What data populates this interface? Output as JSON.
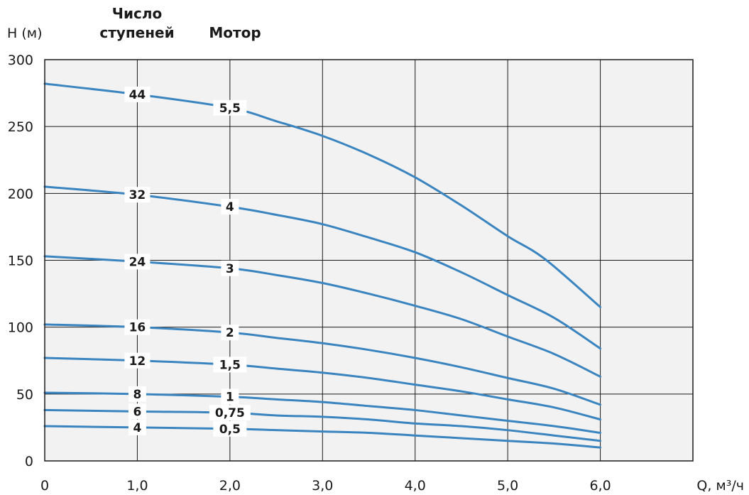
{
  "chart_data": {
    "type": "line",
    "ylabel": "H (м)",
    "xlabel": "Q, м³/ч",
    "column_headers": {
      "stages": "Число\nступеней",
      "motor": "Мотор"
    },
    "xlim": [
      0,
      7
    ],
    "ylim": [
      0,
      300
    ],
    "xticks": [
      "0",
      "1,0",
      "2,0",
      "3,0",
      "4,0",
      "5,0",
      "6,0"
    ],
    "yticks": [
      "0",
      "50",
      "100",
      "150",
      "200",
      "250",
      "300"
    ],
    "grid": true,
    "colors": {
      "line": "#3a84bf",
      "plot_bg": "#f2f2f2",
      "grid": "#1a1a1a",
      "text": "#1a1a1a"
    },
    "series": [
      {
        "stages": "44",
        "motor": "5,5",
        "x": [
          0,
          1,
          2,
          2.5,
          3,
          3.5,
          4,
          4.5,
          5,
          5.4,
          6
        ],
        "y": [
          282,
          274,
          264,
          254,
          243,
          229,
          212,
          191,
          168,
          151,
          115
        ]
      },
      {
        "stages": "32",
        "motor": "4",
        "x": [
          0,
          1,
          2,
          2.5,
          3,
          3.5,
          4,
          4.5,
          5,
          5.5,
          6
        ],
        "y": [
          205,
          199,
          190,
          184,
          177,
          167,
          156,
          141,
          124,
          107,
          84
        ]
      },
      {
        "stages": "24",
        "motor": "3",
        "x": [
          0,
          1,
          2,
          2.5,
          3,
          3.5,
          4,
          4.5,
          5,
          5.5,
          6
        ],
        "y": [
          153,
          149,
          144,
          139,
          133,
          125,
          116,
          106,
          93,
          80,
          63
        ]
      },
      {
        "stages": "16",
        "motor": "2",
        "x": [
          0,
          1,
          2,
          2.5,
          3,
          3.5,
          4,
          4.5,
          5,
          5.5,
          6
        ],
        "y": [
          102,
          100,
          96,
          92,
          88,
          83,
          77,
          70,
          62,
          54,
          42
        ]
      },
      {
        "stages": "12",
        "motor": "1,5",
        "x": [
          0,
          1,
          2,
          2.5,
          3,
          3.5,
          4,
          4.5,
          5,
          5.5,
          6
        ],
        "y": [
          77,
          75,
          72,
          69,
          66,
          62,
          57,
          52,
          46,
          40,
          31
        ]
      },
      {
        "stages": "8",
        "motor": "1",
        "x": [
          0,
          1,
          2,
          2.5,
          3,
          3.5,
          4,
          4.5,
          5,
          5.5,
          6
        ],
        "y": [
          51,
          50,
          48,
          46,
          44,
          41,
          38,
          34,
          30,
          26,
          21
        ]
      },
      {
        "stages": "6",
        "motor": "0,75",
        "x": [
          0,
          1,
          2,
          2.5,
          3,
          3.5,
          4,
          4.5,
          5,
          5.5,
          6
        ],
        "y": [
          38,
          37,
          36,
          34,
          33,
          31,
          28,
          26,
          23,
          19,
          15
        ]
      },
      {
        "stages": "4",
        "motor": "0,5",
        "x": [
          0,
          1,
          2,
          2.5,
          3,
          3.5,
          4,
          4.5,
          5,
          5.5,
          6
        ],
        "y": [
          26,
          25,
          24,
          23,
          22,
          21,
          19,
          17,
          15,
          13,
          10
        ]
      }
    ]
  }
}
